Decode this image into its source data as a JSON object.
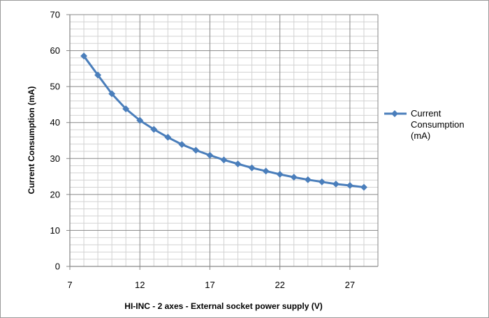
{
  "chart_data": {
    "type": "line",
    "title": "",
    "xlabel": "HI-INC - 2 axes - External socket power supply (V)",
    "ylabel": "Current Consumption (mA)",
    "xlim": [
      7,
      29
    ],
    "ylim": [
      0,
      70
    ],
    "x_ticks": [
      7,
      12,
      17,
      22,
      27
    ],
    "y_ticks": [
      0,
      10,
      20,
      30,
      40,
      50,
      60,
      70
    ],
    "grid": true,
    "legend_position": "right",
    "series": [
      {
        "name": "Current Consumption (mA)",
        "name_lines": [
          "Current",
          "Consumption",
          "(mA)"
        ],
        "color": "#4a7ebb",
        "x": [
          8,
          9,
          10,
          11,
          12,
          13,
          14,
          15,
          16,
          17,
          18,
          19,
          20,
          21,
          22,
          23,
          24,
          25,
          26,
          27,
          28
        ],
        "y": [
          58.5,
          53.2,
          48.0,
          43.8,
          40.6,
          38.1,
          35.9,
          33.9,
          32.3,
          30.9,
          29.6,
          28.5,
          27.4,
          26.5,
          25.6,
          24.8,
          24.1,
          23.5,
          22.9,
          22.5,
          22.0
        ]
      }
    ]
  }
}
